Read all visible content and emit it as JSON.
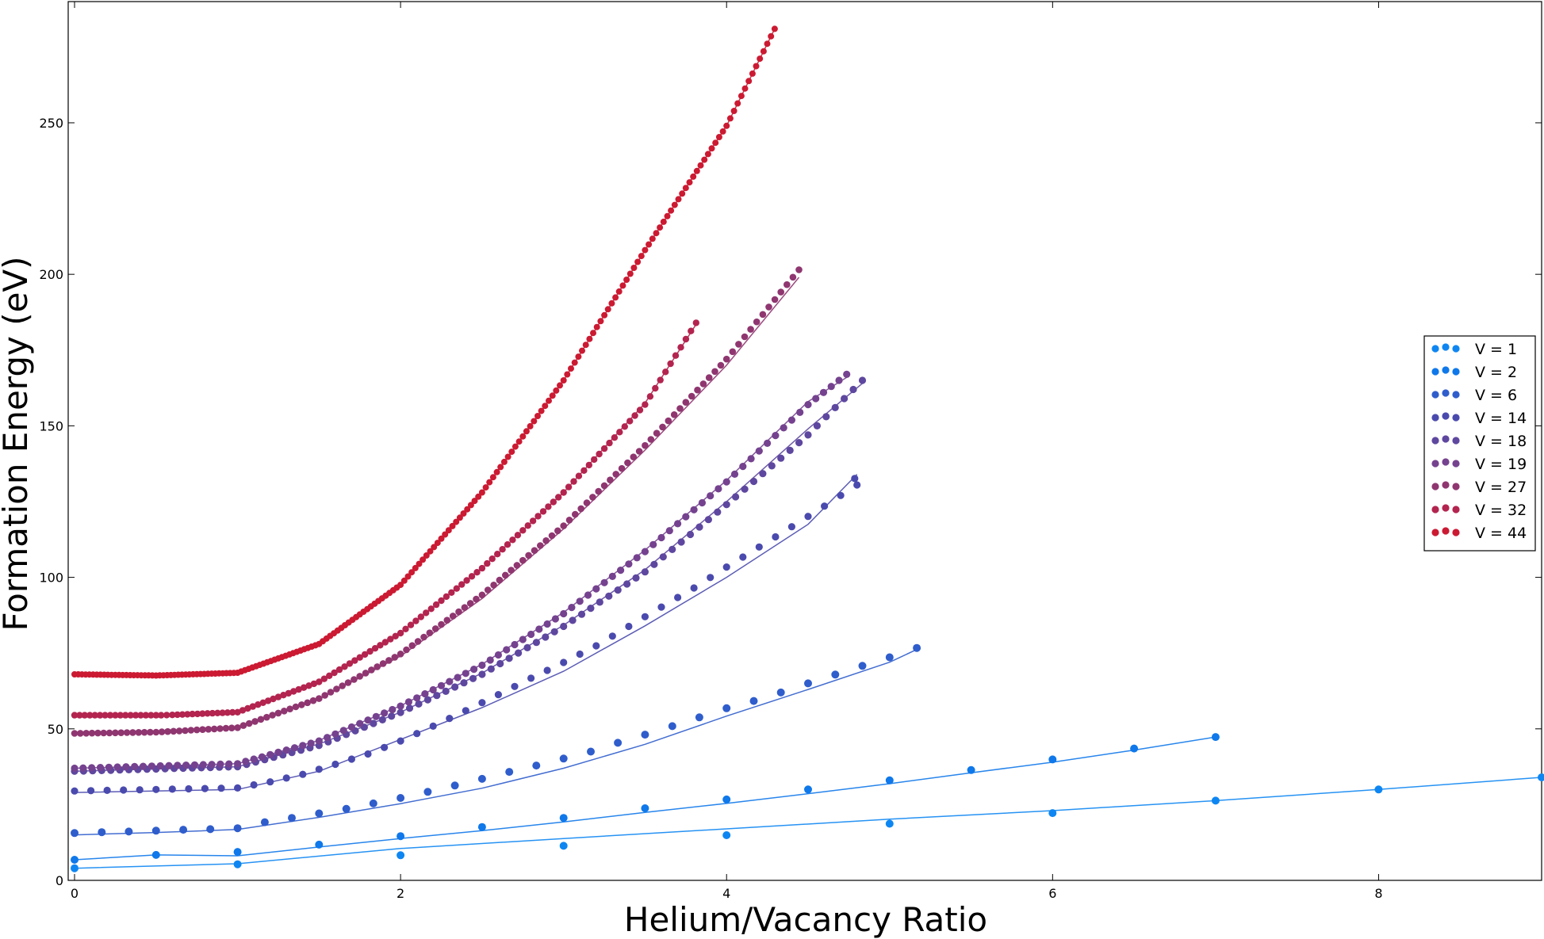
{
  "chart_data": {
    "type": "scatter",
    "title": "",
    "xlabel": "Helium/Vacancy Ratio",
    "ylabel": "Formation Energy (eV)",
    "xlim": [
      0,
      9
    ],
    "ylim": [
      0,
      290
    ],
    "xticks": [
      0,
      2,
      4,
      6,
      8
    ],
    "yticks": [
      0,
      50,
      100,
      150,
      200,
      250
    ],
    "grid": false,
    "legend_position": "right",
    "series": [
      {
        "name": "V = 1",
        "color": "#0e86f2",
        "points": [
          [
            0,
            4.0
          ],
          [
            1,
            5.3
          ],
          [
            2,
            8.3
          ],
          [
            3,
            11.4
          ],
          [
            4,
            14.9
          ],
          [
            5,
            18.7
          ],
          [
            6,
            22.2
          ],
          [
            7,
            26.3
          ],
          [
            8,
            30.0
          ],
          [
            9,
            34.0
          ]
        ],
        "fit": [
          [
            0,
            4.0
          ],
          [
            1,
            5.5
          ],
          [
            2,
            10.5
          ],
          [
            3,
            13.8
          ],
          [
            4,
            17.0
          ],
          [
            5,
            20.2
          ],
          [
            6,
            23.0
          ],
          [
            7,
            26.3
          ],
          [
            8,
            30.0
          ],
          [
            9,
            34.0
          ]
        ]
      },
      {
        "name": "V = 2",
        "color": "#0f78ea",
        "points": [
          [
            0,
            6.8
          ],
          [
            0.5,
            8.4
          ],
          [
            1,
            9.4
          ],
          [
            1.5,
            11.8
          ],
          [
            2,
            14.6
          ],
          [
            2.5,
            17.6
          ],
          [
            3,
            20.6
          ],
          [
            3.5,
            23.8
          ],
          [
            4,
            26.7
          ],
          [
            4.5,
            30.0
          ],
          [
            5,
            33.0
          ],
          [
            5.5,
            36.4
          ],
          [
            6,
            39.9
          ],
          [
            6.5,
            43.5
          ],
          [
            7,
            47.3
          ]
        ],
        "fit": [
          [
            0,
            6.8
          ],
          [
            0.5,
            8.4
          ],
          [
            1,
            8.1
          ],
          [
            1.5,
            11.0
          ],
          [
            2,
            13.8
          ],
          [
            2.5,
            16.4
          ],
          [
            3,
            19.3
          ],
          [
            3.5,
            22.4
          ],
          [
            4,
            25.4
          ],
          [
            4.5,
            28.6
          ],
          [
            5,
            31.9
          ],
          [
            5.5,
            35.5
          ],
          [
            6,
            39.0
          ],
          [
            6.5,
            43.0
          ],
          [
            7,
            47.3
          ]
        ]
      },
      {
        "name": "V = 6",
        "color": "#2f5dcc",
        "points": [
          [
            0,
            15.6
          ],
          [
            0.167,
            15.9
          ],
          [
            0.333,
            16.1
          ],
          [
            0.5,
            16.4
          ],
          [
            0.667,
            16.7
          ],
          [
            0.833,
            16.9
          ],
          [
            1,
            17.2
          ],
          [
            1.167,
            19.2
          ],
          [
            1.333,
            20.6
          ],
          [
            1.5,
            22.1
          ],
          [
            1.667,
            23.6
          ],
          [
            1.833,
            25.4
          ],
          [
            2,
            27.2
          ],
          [
            2.167,
            29.2
          ],
          [
            2.333,
            31.3
          ],
          [
            2.5,
            33.5
          ],
          [
            2.667,
            35.8
          ],
          [
            2.833,
            37.9
          ],
          [
            3,
            40.2
          ],
          [
            3.167,
            42.5
          ],
          [
            3.333,
            45.4
          ],
          [
            3.5,
            48.1
          ],
          [
            3.667,
            50.9
          ],
          [
            3.833,
            53.8
          ],
          [
            4,
            56.8
          ],
          [
            4.167,
            59.2
          ],
          [
            4.333,
            62.0
          ],
          [
            4.5,
            65.0
          ],
          [
            4.667,
            67.9
          ],
          [
            4.833,
            70.8
          ],
          [
            5,
            73.6
          ],
          [
            5.167,
            76.7
          ]
        ],
        "fit": [
          [
            0,
            15.0
          ],
          [
            0.5,
            15.8
          ],
          [
            1,
            16.8
          ],
          [
            1.5,
            20.8
          ],
          [
            2,
            25.3
          ],
          [
            2.5,
            30.4
          ],
          [
            3,
            37.0
          ],
          [
            3.5,
            44.9
          ],
          [
            4,
            54.2
          ],
          [
            4.5,
            63.0
          ],
          [
            5,
            72.0
          ],
          [
            5.167,
            76.2
          ]
        ]
      },
      {
        "name": "V = 14",
        "color": "#4a4aae",
        "points": [
          [
            0,
            29.5
          ],
          [
            1,
            30.5
          ],
          [
            1.2,
            32.5
          ],
          [
            1.4,
            35.0
          ],
          [
            1.6,
            38.3
          ],
          [
            1.8,
            41.7
          ],
          [
            2,
            46.0
          ],
          [
            2.2,
            50.9
          ],
          [
            2.4,
            56.0
          ],
          [
            2.6,
            61.3
          ],
          [
            2.8,
            66.7
          ],
          [
            3,
            71.9
          ],
          [
            3.2,
            77.4
          ],
          [
            3.4,
            83.8
          ],
          [
            3.6,
            90.2
          ],
          [
            3.8,
            96.5
          ],
          [
            4,
            103.4
          ],
          [
            4.2,
            110.0
          ],
          [
            4.4,
            116.7
          ],
          [
            4.6,
            123.5
          ],
          [
            4.8,
            130.5
          ],
          [
            4.786,
            132.6
          ]
        ],
        "fit": [
          [
            0,
            29.0
          ],
          [
            1,
            30.0
          ],
          [
            1.5,
            36.0
          ],
          [
            2,
            46.5
          ],
          [
            2.5,
            57.0
          ],
          [
            3,
            69.0
          ],
          [
            3.5,
            84.0
          ],
          [
            4,
            100.0
          ],
          [
            4.5,
            117.5
          ],
          [
            4.8,
            134.0
          ]
        ]
      },
      {
        "name": "V = 18",
        "color": "#5e479f",
        "points": [
          [
            0,
            36.0
          ],
          [
            1,
            37.5
          ],
          [
            1.5,
            44.5
          ],
          [
            2,
            55.4
          ],
          [
            2.5,
            68.0
          ],
          [
            3,
            83.8
          ],
          [
            3.5,
            101.8
          ],
          [
            4,
            124.0
          ],
          [
            4.5,
            147.0
          ],
          [
            4.833,
            165.0
          ]
        ],
        "fit": [
          [
            0,
            36.0
          ],
          [
            1,
            37.5
          ],
          [
            1.5,
            45.0
          ],
          [
            2,
            55.5
          ],
          [
            2.5,
            68.4
          ],
          [
            3,
            84.2
          ],
          [
            3.5,
            102.5
          ],
          [
            4,
            125.0
          ],
          [
            4.5,
            149.0
          ],
          [
            4.833,
            164.0
          ]
        ]
      },
      {
        "name": "V = 19",
        "color": "#75428f",
        "points": [
          [
            0,
            37.0
          ],
          [
            1,
            38.5
          ],
          [
            1.5,
            46.0
          ],
          [
            2,
            57.5
          ],
          [
            2.5,
            71.0
          ],
          [
            3,
            88.0
          ],
          [
            3.5,
            108.5
          ],
          [
            4,
            131.5
          ],
          [
            4.5,
            157.0
          ],
          [
            4.737,
            167.0
          ]
        ],
        "fit": [
          [
            0,
            37.0
          ],
          [
            1,
            38.5
          ],
          [
            1.5,
            46.2
          ],
          [
            2,
            57.6
          ],
          [
            2.5,
            71.3
          ],
          [
            3,
            88.4
          ],
          [
            3.5,
            109.0
          ],
          [
            4,
            132.0
          ],
          [
            4.5,
            158.0
          ],
          [
            4.737,
            166.0
          ]
        ]
      },
      {
        "name": "V = 27",
        "color": "#8f3670",
        "points": [
          [
            0,
            48.5
          ],
          [
            0.5,
            48.9
          ],
          [
            1,
            50.4
          ],
          [
            1.5,
            60.0
          ],
          [
            2,
            74.7
          ],
          [
            2.5,
            94.2
          ],
          [
            3,
            117.0
          ],
          [
            3.5,
            143.5
          ],
          [
            4,
            172.0
          ],
          [
            4.444,
            201.5
          ]
        ],
        "fit": [
          [
            0,
            48.5
          ],
          [
            0.5,
            48.9
          ],
          [
            1,
            50.4
          ],
          [
            1.5,
            59.8
          ],
          [
            2,
            74.0
          ],
          [
            2.5,
            93.0
          ],
          [
            3,
            116.0
          ],
          [
            3.5,
            142.0
          ],
          [
            4,
            170.0
          ],
          [
            4.444,
            199.0
          ]
        ]
      },
      {
        "name": "V = 32",
        "color": "#b3244f",
        "points": [
          [
            0,
            54.5
          ],
          [
            0.5,
            54.5
          ],
          [
            0.531,
            54.5
          ],
          [
            0.6,
            54.6
          ],
          [
            1,
            55.5
          ],
          [
            1.5,
            65.5
          ],
          [
            2,
            81.6
          ],
          [
            2.5,
            103.0
          ],
          [
            3,
            128.0
          ],
          [
            3.5,
            157.0
          ],
          [
            3.813,
            184.0
          ]
        ],
        "fit": [
          [
            0,
            54.5
          ],
          [
            0.5,
            54.5
          ],
          [
            1,
            55.5
          ],
          [
            1.5,
            65.5
          ],
          [
            2,
            81.6
          ],
          [
            2.5,
            103.0
          ],
          [
            3,
            128.0
          ],
          [
            3.5,
            157.5
          ],
          [
            3.813,
            183.5
          ]
        ]
      },
      {
        "name": "V = 44",
        "color": "#cb1a32",
        "points": [
          [
            0,
            68.0
          ],
          [
            0.5,
            67.6
          ],
          [
            1,
            68.5
          ],
          [
            1.5,
            78.0
          ],
          [
            2,
            97.5
          ],
          [
            2.5,
            128.0
          ],
          [
            3,
            165.0
          ],
          [
            3.5,
            208.0
          ],
          [
            4,
            249.0
          ],
          [
            4.295,
            281.0
          ]
        ],
        "fit": [
          [
            0,
            68.0
          ],
          [
            0.5,
            67.6
          ],
          [
            1,
            68.5
          ],
          [
            1.5,
            78.0
          ],
          [
            2,
            97.5
          ],
          [
            2.5,
            128.0
          ],
          [
            3,
            165.0
          ],
          [
            3.5,
            208.0
          ],
          [
            4,
            249.0
          ],
          [
            4.295,
            281.0
          ]
        ]
      }
    ]
  }
}
